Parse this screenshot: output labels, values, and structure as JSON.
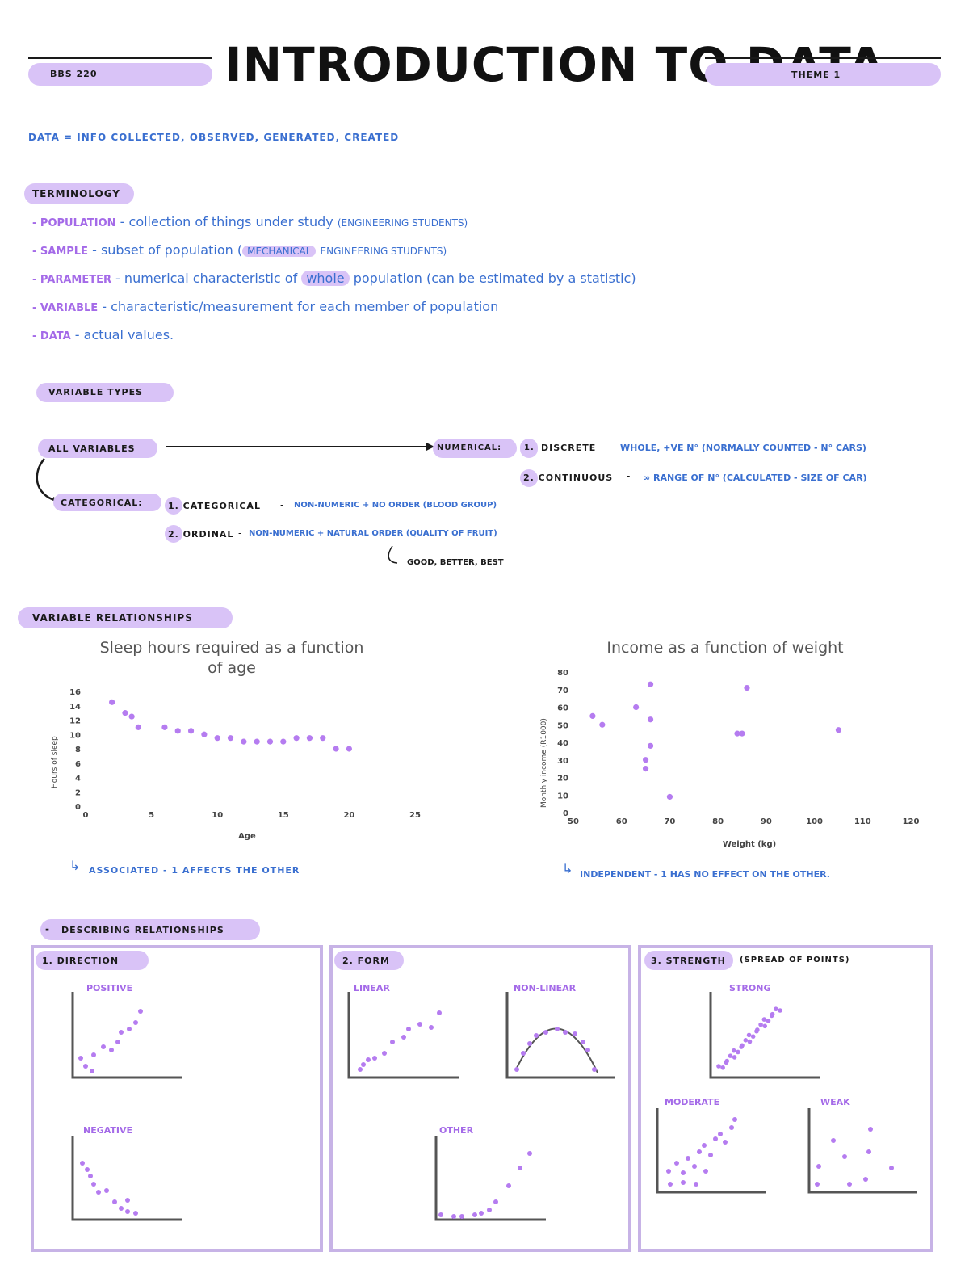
{
  "header": {
    "course": "BBS 220",
    "title": "INTRODUCTION TO DATA",
    "theme": "THEME 1"
  },
  "definition": "DATA = INFO COLLECTED, OBSERVED, GENERATED, CREATED",
  "terminology": {
    "heading": "TERMINOLOGY",
    "items": [
      {
        "term": "Population",
        "desc": "collection of things under study",
        "extra": "(ENGINEERING STUDENTS)"
      },
      {
        "term": "Sample",
        "desc": "subset of population",
        "extra_pre": "(",
        "highlight": "MECHANICAL",
        "extra": "ENGINEERING STUDENTS)"
      },
      {
        "term": "Parameter",
        "desc": "numerical characteristic of",
        "highlight": "whole",
        "extra": "population (can be estimated by a statistic)"
      },
      {
        "term": "Variable",
        "desc": "characteristic/measurement for each member of population"
      },
      {
        "term": "Data",
        "desc": "actual values."
      }
    ]
  },
  "variable_types": {
    "heading": "VARIABLE TYPES",
    "all": "ALL VARIABLES",
    "numerical": "NUMERICAL:",
    "discrete_num": "1.",
    "discrete": "DISCRETE",
    "discrete_desc": "WHOLE, +VE N° (NORMALLY COUNTED - N° CARS)",
    "continuous": "2. CONTINUOUS",
    "continuous_desc": "∞ RANGE OF N° (CALCULATED - SIZE OF CAR)",
    "categorical": "CATEGORICAL:",
    "cat1": "1. CATEGORICAL",
    "cat1_desc": "NON-NUMERIC + NO ORDER (BLOOD GROUP)",
    "cat2": "2. ORDINAL",
    "cat2_desc": "NON-NUMERIC + NATURAL ORDER (QUALITY OF FRUIT)",
    "ordinal_example": "GOOD, BETTER, BEST"
  },
  "relationships": {
    "heading": "VARIABLE RELATIONSHIPS",
    "associated_note": "ASSOCIATED - 1 AFFECTS THE OTHER",
    "independent_note": "INDEPENDENT - 1 HAS NO EFFECT ON THE OTHER."
  },
  "chart_data": [
    {
      "type": "scatter",
      "title": "Sleep hours required as a function of age",
      "title_line1": "Sleep hours required as a function",
      "title_line2": "of age",
      "xlabel": "Age",
      "ylabel": "Hours of sleep",
      "xlim": [
        0,
        25
      ],
      "ylim": [
        0,
        16
      ],
      "xticks": [
        0,
        5,
        10,
        15,
        20,
        25
      ],
      "yticks": [
        0,
        2,
        4,
        6,
        8,
        10,
        12,
        14,
        16
      ],
      "color": "#b57cf0",
      "x": [
        2,
        3,
        3.5,
        4,
        6,
        7,
        8,
        9,
        10,
        11,
        12,
        13,
        14,
        15,
        16,
        17,
        18,
        19,
        20
      ],
      "y": [
        14.5,
        13,
        12.5,
        11,
        11,
        10.5,
        10.5,
        10,
        9.5,
        9.5,
        9,
        9,
        9,
        9,
        9.5,
        9.5,
        9.5,
        8,
        8
      ]
    },
    {
      "type": "scatter",
      "title": "Income as a function of weight",
      "xlabel": "Weight (kg)",
      "ylabel": "Monthly income (R1000)",
      "xlim": [
        50,
        120
      ],
      "ylim": [
        0,
        80
      ],
      "xticks": [
        50,
        60,
        70,
        80,
        90,
        100,
        110,
        120
      ],
      "yticks": [
        0,
        10,
        20,
        30,
        40,
        50,
        60,
        70,
        80
      ],
      "color": "#b57cf0",
      "x": [
        54,
        56,
        63,
        65,
        65,
        66,
        66,
        66,
        70,
        84,
        85,
        86,
        105
      ],
      "y": [
        55,
        50,
        60,
        30,
        25,
        73,
        53,
        38,
        9,
        45,
        45,
        71,
        47
      ]
    }
  ],
  "describing": {
    "heading": "DESCRIBING RELATIONSHIPS",
    "direction": {
      "label": "1. DIRECTION",
      "positive": "POSITIVE",
      "negative": "NEGATIVE"
    },
    "form": {
      "label": "2. FORM",
      "linear": "LINEAR",
      "nonlinear": "NON-LINEAR",
      "other": "OTHER"
    },
    "strength": {
      "label": "3. STRENGTH",
      "note": "(SPREAD OF POINTS)",
      "strong": "STRONG",
      "moderate": "MODERATE",
      "weak": "WEAK"
    }
  },
  "colors": {
    "accent": "#d9c3f7",
    "purple": "#a46ae8",
    "blue": "#3a6fd0",
    "dot": "#b57cf0"
  }
}
